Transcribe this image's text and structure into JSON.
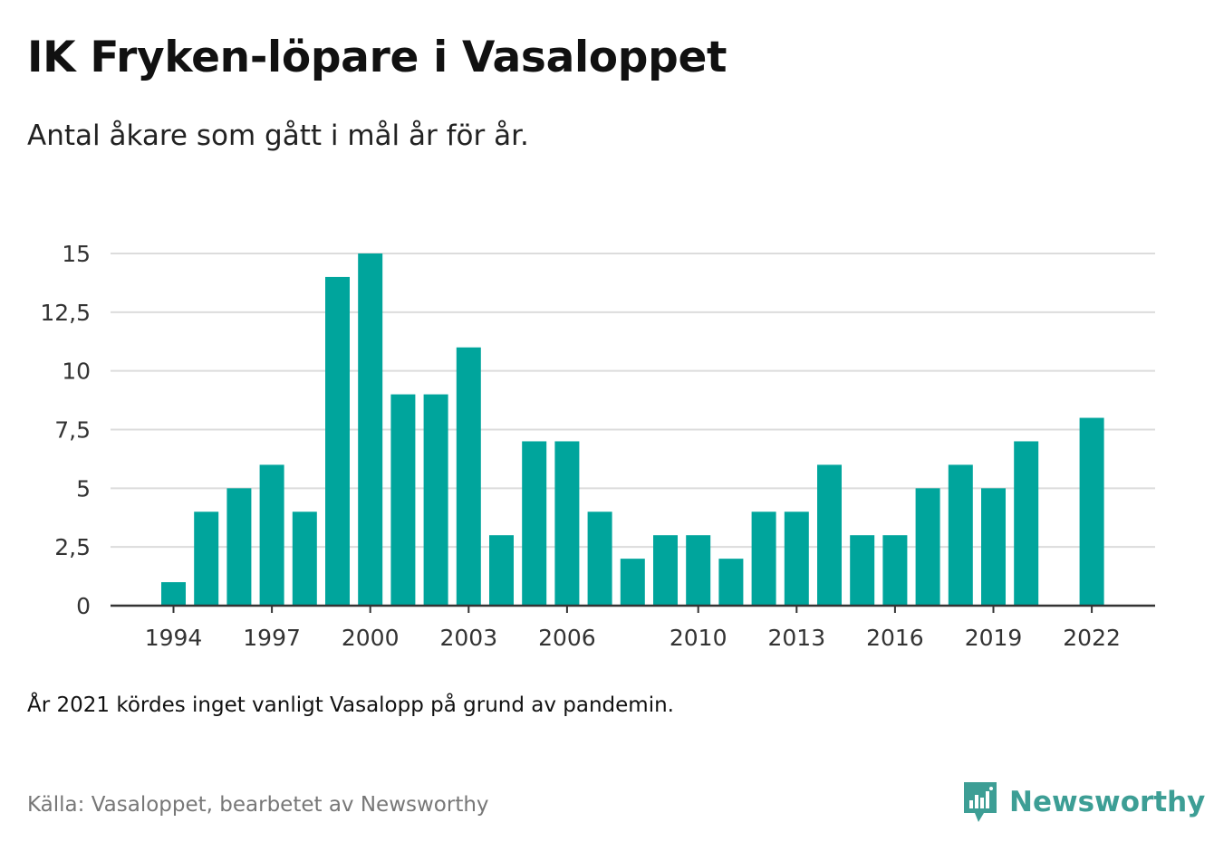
{
  "header": {
    "title": "IK Fryken-löpare i Vasaloppet",
    "subtitle": "Antal åkare som gått i mål år för år."
  },
  "footer": {
    "note": "År 2021 kördes inget vanligt Vasalopp på grund av pandemin.",
    "source": "Källa: Vasaloppet, bearbetet av Newsworthy",
    "brand": "Newsworthy"
  },
  "colors": {
    "bar": "#00a59c",
    "grid": "#dcdcdc",
    "axis": "#333333",
    "brand": "#3d9e95"
  },
  "chart_data": {
    "type": "bar",
    "title": "IK Fryken-löpare i Vasaloppet",
    "subtitle": "Antal åkare som gått i mål år för år.",
    "xlabel": "",
    "ylabel": "",
    "categories": [
      1994,
      1995,
      1996,
      1997,
      1998,
      1999,
      2000,
      2001,
      2002,
      2003,
      2004,
      2005,
      2006,
      2007,
      2008,
      2009,
      2010,
      2011,
      2012,
      2013,
      2014,
      2015,
      2016,
      2017,
      2018,
      2019,
      2020,
      2021,
      2022
    ],
    "values": [
      1,
      4,
      5,
      6,
      4,
      14,
      15,
      9,
      9,
      11,
      3,
      7,
      7,
      4,
      2,
      3,
      3,
      2,
      4,
      4,
      6,
      3,
      3,
      5,
      6,
      5,
      7,
      null,
      8
    ],
    "ylim": [
      0,
      15
    ],
    "yticks": [
      0,
      2.5,
      5,
      7.5,
      10,
      12.5,
      15
    ],
    "ytick_labels": [
      "0",
      "2,5",
      "5",
      "7,5",
      "10",
      "12,5",
      "15"
    ],
    "xtick_labels": [
      "1994",
      "1997",
      "2000",
      "2003",
      "2006",
      "2010",
      "2013",
      "2016",
      "2019",
      "2022"
    ],
    "grid": true,
    "legend": "none"
  }
}
